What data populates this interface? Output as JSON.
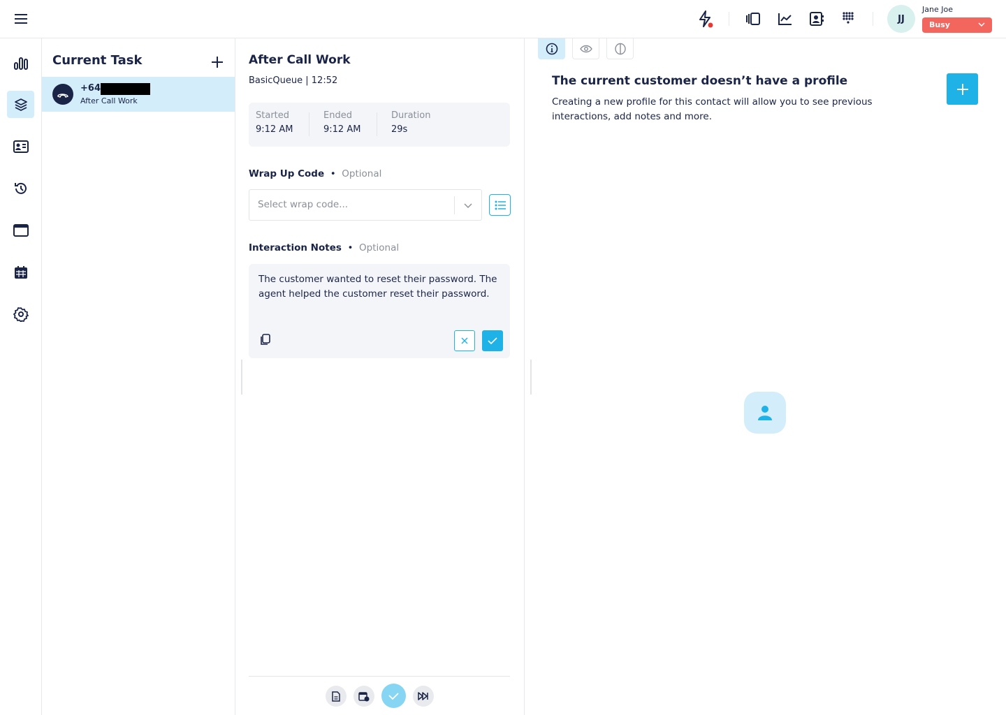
{
  "topbar": {
    "user_initials": "JJ",
    "user_name": "Jane Joe",
    "status": "Busy",
    "icons": [
      "menu-icon",
      "lightning-icon",
      "panel-icon",
      "chart-line-icon",
      "contact-book-icon",
      "dialpad-icon"
    ]
  },
  "colors": {
    "navy": "#1a2447",
    "accent": "#1eb2e6",
    "active_bg": "#d3eefa",
    "busy": "#f2665e",
    "notification": "#e53935"
  },
  "tasks": {
    "title": "Current Task",
    "items": [
      {
        "phone": "+64",
        "status": "After Call Work"
      }
    ]
  },
  "acw": {
    "title": "After Call Work",
    "queue": "BasicQueue",
    "timer": "12:52",
    "stats": [
      {
        "label": "Started",
        "value": "9:12 AM"
      },
      {
        "label": "Ended",
        "value": "9:12 AM"
      },
      {
        "label": "Duration",
        "value": "29s"
      }
    ],
    "wrap_label": "Wrap Up Code",
    "optional": "Optional",
    "wrap_placeholder": "Select wrap code...",
    "notes_label": "Interaction Notes",
    "notes": "The customer wanted to reset their password. The agent helped the customer reset their password."
  },
  "profile": {
    "title": "The current customer doesn’t have a profile",
    "description": "Creating a new profile for this contact will allow you to see previous interactions, add notes and more."
  }
}
